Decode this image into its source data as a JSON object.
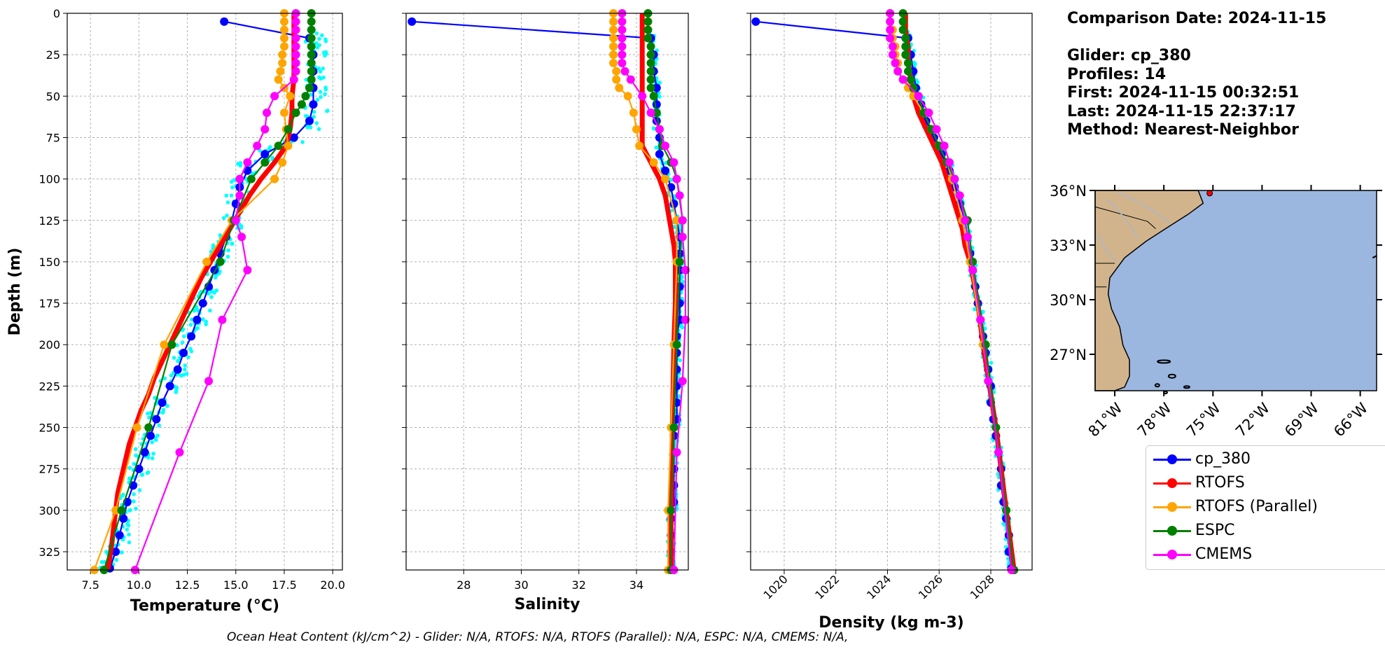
{
  "info": {
    "comparison_date": "Comparison Date: 2024-11-15",
    "glider": "Glider: cp_380",
    "profiles": "Profiles: 14",
    "first": "First: 2024-11-15 00:32:51",
    "last": "Last: 2024-11-15 22:37:17",
    "method": "Method: Nearest-Neighbor"
  },
  "footer": "Ocean Heat Content (kJ/cm^2) - Glider: N/A,  RTOFS: N/A,  RTOFS (Parallel): N/A,  ESPC: N/A,  CMEMS: N/A,",
  "legend": [
    {
      "label": "cp_380",
      "color": "#0000ff"
    },
    {
      "label": "RTOFS",
      "color": "#ff0000"
    },
    {
      "label": "RTOFS (Parallel)",
      "color": "#ffa500"
    },
    {
      "label": "ESPC",
      "color": "#008000"
    },
    {
      "label": "CMEMS",
      "color": "#ff00ff"
    }
  ],
  "chart_data": [
    {
      "type": "line",
      "xlabel": "Temperature (°C)",
      "ylabel": "Depth (m)",
      "xlim": [
        6.3,
        20.5
      ],
      "ylim": [
        336,
        0
      ],
      "xticks": [
        "7.5",
        "10.0",
        "12.5",
        "15.0",
        "17.5",
        "20.0"
      ],
      "yticks": [
        "0",
        "25",
        "50",
        "75",
        "100",
        "125",
        "150",
        "175",
        "200",
        "225",
        "250",
        "275",
        "300",
        "325"
      ],
      "grid": true,
      "series": [
        {
          "name": "cp_380",
          "color": "#0000ff",
          "depth": [
            5,
            15,
            25,
            35,
            45,
            55,
            65,
            75,
            85,
            95,
            105,
            115,
            125,
            135,
            145,
            155,
            165,
            175,
            185,
            195,
            205,
            215,
            225,
            235,
            245,
            255,
            265,
            275,
            285,
            295,
            305,
            315,
            325,
            335
          ],
          "values": [
            14.4,
            18.8,
            19.0,
            19.0,
            19.0,
            19.0,
            18.8,
            18.0,
            16.5,
            15.6,
            15.2,
            15.0,
            14.8,
            14.5,
            14.2,
            13.9,
            13.6,
            13.3,
            13.0,
            12.7,
            12.3,
            12.0,
            11.6,
            11.2,
            10.9,
            10.6,
            10.3,
            10.0,
            9.7,
            9.4,
            9.2,
            9.0,
            8.8,
            8.5
          ]
        },
        {
          "name": "RTOFS",
          "color": "#ff0000",
          "depth": [
            0,
            10,
            20,
            30,
            40,
            50,
            60,
            70,
            80,
            90,
            100,
            110,
            120,
            130,
            140,
            150,
            160,
            170,
            180,
            190,
            200,
            210,
            220,
            230,
            240,
            250,
            260,
            270,
            280,
            290,
            300,
            310,
            320,
            336
          ],
          "values": [
            18.0,
            18.0,
            18.0,
            18.0,
            18.0,
            17.9,
            17.9,
            17.8,
            17.6,
            17.0,
            16.3,
            15.7,
            15.2,
            14.7,
            14.2,
            13.7,
            13.2,
            12.8,
            12.4,
            12.0,
            11.6,
            11.2,
            10.8,
            10.5,
            10.1,
            9.8,
            9.5,
            9.3,
            9.1,
            8.9,
            8.8,
            8.7,
            8.6,
            8.4
          ]
        },
        {
          "name": "RTOFS (Parallel)",
          "color": "#ffa500",
          "depth": [
            0,
            5,
            10,
            15,
            20,
            25,
            30,
            35,
            40,
            45,
            50,
            60,
            70,
            80,
            90,
            100,
            125,
            150,
            200,
            250,
            300,
            336
          ],
          "values": [
            17.5,
            17.5,
            17.5,
            17.5,
            17.5,
            17.4,
            17.4,
            17.3,
            17.2,
            17.5,
            17.8,
            17.5,
            17.6,
            17.7,
            17.4,
            17.0,
            14.8,
            13.5,
            11.3,
            9.9,
            8.8,
            7.7
          ]
        },
        {
          "name": "ESPC",
          "color": "#008000",
          "depth": [
            0,
            5,
            10,
            15,
            20,
            25,
            30,
            35,
            40,
            45,
            50,
            55,
            60,
            70,
            80,
            90,
            100,
            125,
            150,
            200,
            250,
            300,
            336
          ],
          "values": [
            18.9,
            18.9,
            18.9,
            18.9,
            18.9,
            18.9,
            18.9,
            18.9,
            18.9,
            18.8,
            18.6,
            18.4,
            18.1,
            17.7,
            17.2,
            16.5,
            15.8,
            14.9,
            14.2,
            11.7,
            10.5,
            9.1,
            8.2
          ]
        },
        {
          "name": "CMEMS",
          "color": "#ff00ff",
          "depth": [
            0,
            5,
            10,
            15,
            20,
            25,
            30,
            35,
            40,
            50,
            60,
            70,
            80,
            90,
            100,
            110,
            125,
            135,
            155,
            185,
            222,
            265,
            336
          ],
          "values": [
            18.1,
            18.1,
            18.1,
            18.1,
            18.1,
            18.1,
            18.1,
            18.1,
            18.0,
            17.0,
            16.6,
            16.5,
            16.1,
            15.6,
            15.2,
            15.2,
            15.0,
            15.3,
            15.6,
            14.3,
            13.6,
            12.1,
            9.8
          ]
        }
      ]
    },
    {
      "type": "line",
      "xlabel": "Salinity",
      "ylabel": "",
      "xlim": [
        26.0,
        35.8
      ],
      "ylim": [
        336,
        0
      ],
      "xticks": [
        "28",
        "30",
        "32",
        "34"
      ],
      "yticks": [],
      "grid": true,
      "series": [
        {
          "name": "cp_380",
          "color": "#0000ff",
          "depth": [
            5,
            15,
            25,
            35,
            45,
            55,
            65,
            75,
            85,
            95,
            105,
            115,
            125,
            135,
            145,
            155,
            165,
            175,
            185,
            195,
            205,
            215,
            225,
            235,
            245,
            255,
            265,
            275,
            285,
            295,
            305,
            315,
            325,
            335
          ],
          "values": [
            26.2,
            34.5,
            34.6,
            34.6,
            34.7,
            34.7,
            34.7,
            34.8,
            34.8,
            35.0,
            35.2,
            35.3,
            35.4,
            35.5,
            35.5,
            35.5,
            35.5,
            35.5,
            35.5,
            35.4,
            35.4,
            35.4,
            35.4,
            35.4,
            35.4,
            35.3,
            35.3,
            35.3,
            35.3,
            35.3,
            35.2,
            35.2,
            35.2,
            35.2
          ]
        },
        {
          "name": "RTOFS",
          "color": "#ff0000",
          "depth": [
            0,
            10,
            20,
            30,
            40,
            50,
            60,
            70,
            80,
            90,
            100,
            110,
            120,
            130,
            140,
            150,
            175,
            200,
            250,
            300,
            336
          ],
          "values": [
            34.2,
            34.2,
            34.2,
            34.2,
            34.2,
            34.2,
            34.2,
            34.2,
            34.2,
            34.5,
            34.8,
            35.0,
            35.1,
            35.2,
            35.3,
            35.35,
            35.35,
            35.3,
            35.25,
            35.2,
            35.2
          ]
        },
        {
          "name": "RTOFS (Parallel)",
          "color": "#ffa500",
          "depth": [
            0,
            5,
            10,
            15,
            20,
            25,
            30,
            35,
            40,
            45,
            50,
            60,
            70,
            80,
            90,
            100,
            125,
            150,
            200,
            250,
            300,
            336
          ],
          "values": [
            33.2,
            33.2,
            33.2,
            33.2,
            33.2,
            33.2,
            33.2,
            33.3,
            33.3,
            33.4,
            33.7,
            33.9,
            34.0,
            34.1,
            34.6,
            35.0,
            35.4,
            35.4,
            35.3,
            35.2,
            35.1,
            35.1
          ]
        },
        {
          "name": "ESPC",
          "color": "#008000",
          "depth": [
            0,
            5,
            10,
            15,
            20,
            25,
            30,
            35,
            40,
            45,
            50,
            60,
            70,
            80,
            90,
            100,
            125,
            150,
            200,
            250,
            300,
            336
          ],
          "values": [
            34.4,
            34.4,
            34.4,
            34.4,
            34.5,
            34.5,
            34.5,
            34.5,
            34.5,
            34.5,
            34.6,
            34.7,
            34.8,
            34.9,
            35.2,
            35.4,
            35.6,
            35.5,
            35.4,
            35.3,
            35.2,
            35.2
          ]
        },
        {
          "name": "CMEMS",
          "color": "#ff00ff",
          "depth": [
            0,
            5,
            10,
            15,
            20,
            25,
            30,
            35,
            40,
            50,
            60,
            70,
            80,
            90,
            100,
            110,
            125,
            135,
            155,
            185,
            222,
            265,
            336
          ],
          "values": [
            33.5,
            33.5,
            33.5,
            33.5,
            33.5,
            33.5,
            33.5,
            33.6,
            33.8,
            34.2,
            34.5,
            34.8,
            35.0,
            35.3,
            35.4,
            35.5,
            35.6,
            35.6,
            35.7,
            35.7,
            35.6,
            35.4,
            35.3
          ]
        }
      ]
    },
    {
      "type": "line",
      "xlabel": "Density (kg m-3)",
      "ylabel": "",
      "xlim": [
        1018.7,
        1029.6
      ],
      "ylim": [
        336,
        0
      ],
      "xticks": [
        "1020",
        "1022",
        "1024",
        "1026",
        "1028"
      ],
      "yticks": [],
      "grid": true,
      "series": [
        {
          "name": "cp_380",
          "color": "#0000ff",
          "depth": [
            5,
            15,
            25,
            35,
            45,
            55,
            65,
            75,
            85,
            95,
            105,
            115,
            125,
            135,
            145,
            155,
            165,
            175,
            185,
            195,
            205,
            215,
            225,
            235,
            245,
            255,
            265,
            275,
            285,
            295,
            305,
            315,
            325,
            335
          ],
          "values": [
            1018.9,
            1024.8,
            1024.9,
            1025.0,
            1025.1,
            1025.3,
            1025.5,
            1025.8,
            1026.1,
            1026.4,
            1026.6,
            1026.8,
            1027.0,
            1027.1,
            1027.2,
            1027.3,
            1027.4,
            1027.5,
            1027.6,
            1027.7,
            1027.8,
            1027.9,
            1028.0,
            1028.0,
            1028.1,
            1028.2,
            1028.3,
            1028.4,
            1028.4,
            1028.5,
            1028.6,
            1028.7,
            1028.7,
            1028.8
          ]
        },
        {
          "name": "RTOFS",
          "color": "#ff0000",
          "depth": [
            0,
            10,
            20,
            30,
            40,
            50,
            60,
            70,
            80,
            90,
            100,
            110,
            120,
            130,
            140,
            150,
            175,
            200,
            250,
            300,
            336
          ],
          "values": [
            1024.7,
            1024.7,
            1024.8,
            1024.8,
            1024.9,
            1025.0,
            1025.2,
            1025.5,
            1025.8,
            1026.1,
            1026.3,
            1026.5,
            1026.7,
            1026.9,
            1027.0,
            1027.2,
            1027.5,
            1027.7,
            1028.2,
            1028.6,
            1028.9
          ]
        },
        {
          "name": "RTOFS (Parallel)",
          "color": "#ffa500",
          "depth": [
            0,
            5,
            10,
            15,
            20,
            25,
            30,
            35,
            40,
            45,
            50,
            60,
            70,
            80,
            90,
            100,
            125,
            150,
            200,
            250,
            300,
            336
          ],
          "values": [
            1024.1,
            1024.1,
            1024.2,
            1024.2,
            1024.3,
            1024.3,
            1024.4,
            1024.4,
            1024.6,
            1024.8,
            1025.0,
            1025.4,
            1025.7,
            1026.0,
            1026.3,
            1026.5,
            1026.9,
            1027.2,
            1027.7,
            1028.2,
            1028.6,
            1028.9
          ]
        },
        {
          "name": "ESPC",
          "color": "#008000",
          "depth": [
            0,
            5,
            10,
            15,
            20,
            25,
            30,
            35,
            40,
            45,
            50,
            60,
            70,
            80,
            90,
            100,
            125,
            150,
            200,
            250,
            300,
            336
          ],
          "values": [
            1024.6,
            1024.6,
            1024.6,
            1024.7,
            1024.7,
            1024.7,
            1024.8,
            1024.8,
            1024.9,
            1025.0,
            1025.2,
            1025.4,
            1025.7,
            1026.0,
            1026.3,
            1026.6,
            1027.1,
            1027.3,
            1027.8,
            1028.2,
            1028.6,
            1028.9
          ]
        },
        {
          "name": "CMEMS",
          "color": "#ff00ff",
          "depth": [
            0,
            5,
            10,
            15,
            20,
            25,
            30,
            35,
            40,
            50,
            60,
            70,
            80,
            90,
            100,
            110,
            125,
            135,
            155,
            185,
            222,
            265,
            336
          ],
          "values": [
            1024.1,
            1024.1,
            1024.1,
            1024.1,
            1024.2,
            1024.2,
            1024.3,
            1024.4,
            1024.6,
            1025.2,
            1025.6,
            1025.9,
            1026.2,
            1026.4,
            1026.6,
            1026.8,
            1027.0,
            1027.1,
            1027.3,
            1027.6,
            1027.9,
            1028.3,
            1028.8
          ]
        }
      ]
    }
  ],
  "map": {
    "lat_labels": [
      "36°N",
      "33°N",
      "30°N",
      "27°N"
    ],
    "lon_labels": [
      "81°W",
      "78°W",
      "75°W",
      "72°W",
      "69°W",
      "66°W"
    ],
    "land_color": "#d2b48c",
    "ocean_color": "#9bb7e0",
    "glider_marker_color": "#ff0000"
  }
}
